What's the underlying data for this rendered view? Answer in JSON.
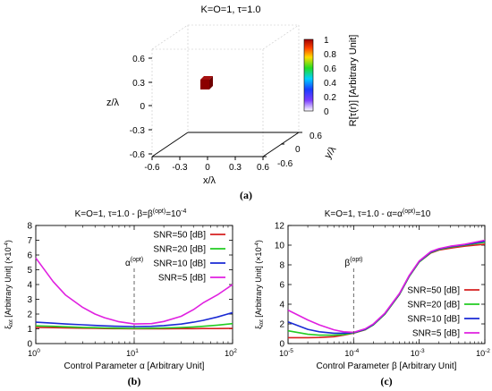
{
  "figure": {
    "panel_a_caption": "(a)",
    "panel_b_caption": "(b)",
    "panel_c_caption": "(c)"
  },
  "chart_data": [
    {
      "id": "a",
      "type": "scatter3d",
      "title": "K=O=1, τ=1.0",
      "xlabel": "x/λ",
      "ylabel": "y/λ",
      "zlabel": "z/λ",
      "x_ticks": [
        "-0.6",
        "-0.3",
        "0",
        "0.3",
        "0.6"
      ],
      "y_ticks": [
        "-0.6",
        "0",
        "0.6"
      ],
      "z_ticks": [
        "0.6",
        "0.3",
        "0",
        "-0.3",
        "-0.6"
      ],
      "xlim": [
        -0.6,
        0.6
      ],
      "ylim": [
        -0.6,
        0.6
      ],
      "zlim": [
        -0.6,
        0.6
      ],
      "colorbar": {
        "label": "R[τ(r)] [Arbitrary Unit]",
        "ticks": [
          "1",
          "0.8",
          "0.6",
          "0.4",
          "0.2",
          "0"
        ],
        "range": [
          0,
          1
        ]
      },
      "points": [
        {
          "x": 0.0,
          "y": 0.0,
          "z": 0.3,
          "value": 1.0
        }
      ],
      "grid": false
    },
    {
      "id": "b",
      "type": "line",
      "title": "K=O=1, τ=1.0 - β=β(opt)=10-4",
      "title_parts": {
        "main": "K=O=1, τ=1.0 - β=β",
        "sup1": "(opt)",
        "mid": "=10",
        "sup2": "-4"
      },
      "xlabel": "Control Parameter α [Arbitrary Unit]",
      "ylabel": "ξtot [Arbitrary Unit] (×10-4)",
      "ylabel_parts": {
        "sym": "ξ",
        "sub": "tot",
        "rest": " [Arbitrary Unit] (×10",
        "sup": "-4",
        "end": ")"
      },
      "x_scale": "log",
      "xlim": [
        1,
        100
      ],
      "ylim": [
        0,
        8
      ],
      "x_ticks": [
        {
          "base": "10",
          "exp": "0",
          "v": 1
        },
        {
          "base": "10",
          "exp": "1",
          "v": 10
        },
        {
          "base": "10",
          "exp": "2",
          "v": 100
        }
      ],
      "y_ticks": [
        "0",
        "1",
        "2",
        "3",
        "4",
        "5",
        "6",
        "7",
        "8"
      ],
      "annotation": {
        "text": "α",
        "sup": "(opt)",
        "x": 10
      },
      "legend_position": "top-right",
      "x": [
        1,
        1.5,
        2,
        3,
        4,
        5,
        7,
        10,
        15,
        20,
        30,
        40,
        50,
        70,
        100
      ],
      "series": [
        {
          "name": "SNR=50 [dB]",
          "color": "#d62020",
          "values": [
            1.1,
            1.08,
            1.06,
            1.04,
            1.03,
            1.02,
            1.01,
            1.0,
            1.0,
            1.0,
            1.01,
            1.01,
            1.02,
            1.02,
            1.03
          ]
        },
        {
          "name": "SNR=20 [dB]",
          "color": "#22cc22",
          "values": [
            1.2,
            1.17,
            1.14,
            1.1,
            1.08,
            1.06,
            1.04,
            1.03,
            1.04,
            1.06,
            1.09,
            1.13,
            1.17,
            1.25,
            1.35
          ]
        },
        {
          "name": "SNR=10 [dB]",
          "color": "#1a2ad4",
          "values": [
            1.45,
            1.38,
            1.33,
            1.27,
            1.23,
            1.2,
            1.17,
            1.15,
            1.17,
            1.22,
            1.32,
            1.45,
            1.57,
            1.8,
            2.1
          ]
        },
        {
          "name": "SNR=5 [dB]",
          "color": "#e020e0",
          "values": [
            5.8,
            4.2,
            3.3,
            2.45,
            2.0,
            1.75,
            1.48,
            1.33,
            1.35,
            1.5,
            1.85,
            2.3,
            2.75,
            3.3,
            4.0
          ]
        }
      ]
    },
    {
      "id": "c",
      "type": "line",
      "title": "K=O=1, τ=1.0 - α=α(opt)=10",
      "title_parts": {
        "main": "K=O=1, τ=1.0 - α=α",
        "sup1": "(opt)",
        "end": "=10"
      },
      "xlabel": "Control Parameter β [Arbitrary Unit]",
      "ylabel": "ξtot [Arbitrary Unit] (×10-4)",
      "ylabel_parts": {
        "sym": "ξ",
        "sub": "tot",
        "rest": " [Arbitrary Unit] (×10",
        "sup": "-4",
        "end": ")"
      },
      "x_scale": "log",
      "xlim": [
        1e-05,
        0.01
      ],
      "ylim": [
        0,
        12
      ],
      "x_ticks": [
        {
          "base": "10",
          "exp": "-5",
          "v": 1e-05
        },
        {
          "base": "10",
          "exp": "-4",
          "v": 0.0001
        },
        {
          "base": "10",
          "exp": "-3",
          "v": 0.001
        },
        {
          "base": "10",
          "exp": "-2",
          "v": 0.01
        }
      ],
      "y_ticks": [
        "0",
        "2",
        "4",
        "6",
        "8",
        "10",
        "12"
      ],
      "annotation": {
        "text": "β",
        "sup": "(opt)",
        "x": 0.0001
      },
      "legend_position": "bottom-right",
      "x": [
        1e-05,
        2e-05,
        3e-05,
        5e-05,
        7e-05,
        0.0001,
        0.00015,
        0.0002,
        0.0003,
        0.0005,
        0.0007,
        0.001,
        0.0015,
        0.002,
        0.003,
        0.005,
        0.01
      ],
      "series": [
        {
          "name": "SNR=50 [dB]",
          "color": "#d62020",
          "values": [
            0.6,
            0.6,
            0.62,
            0.7,
            0.85,
            1.05,
            1.4,
            1.9,
            3.0,
            5.0,
            6.8,
            8.3,
            9.2,
            9.5,
            9.7,
            9.9,
            10.1
          ]
        },
        {
          "name": "SNR=20 [dB]",
          "color": "#22cc22",
          "values": [
            1.3,
            0.95,
            0.85,
            0.85,
            0.92,
            1.08,
            1.42,
            1.9,
            3.0,
            5.0,
            6.8,
            8.3,
            9.25,
            9.55,
            9.8,
            10.0,
            10.3
          ]
        },
        {
          "name": "SNR=10 [dB]",
          "color": "#1a2ad4",
          "values": [
            2.2,
            1.45,
            1.2,
            1.05,
            1.05,
            1.12,
            1.45,
            1.95,
            3.05,
            5.05,
            6.85,
            8.35,
            9.3,
            9.6,
            9.85,
            10.05,
            10.4
          ]
        },
        {
          "name": "SNR=5 [dB]",
          "color": "#e020e0",
          "values": [
            3.4,
            2.4,
            1.9,
            1.4,
            1.2,
            1.15,
            1.5,
            2.0,
            3.1,
            5.1,
            6.9,
            8.4,
            9.35,
            9.65,
            9.9,
            10.1,
            10.5
          ]
        }
      ]
    }
  ]
}
